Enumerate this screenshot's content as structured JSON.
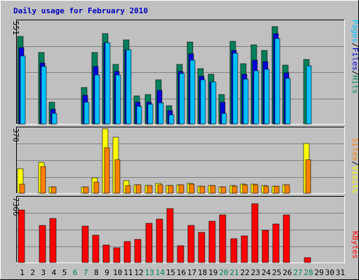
{
  "title": "Daily usage for February 2010",
  "colors": {
    "hits": "#00805c",
    "files": "#0000d8",
    "pages": "#00c0ff",
    "visits": "#ffff00",
    "sites": "#ff8000",
    "kbytes": "#ff0000",
    "title": "#0000c0",
    "weekend": "#00805c",
    "weekday": "#000000"
  },
  "side_labels": {
    "top": {
      "hits": "Hits",
      "files": "Files",
      "pages": "Pages",
      "sep": "/"
    },
    "mid": {
      "visits": "Visits",
      "sites": "Sites",
      "sep": "/"
    },
    "bottom": {
      "kbytes": "KBytes"
    }
  },
  "chart_data": [
    {
      "type": "bar",
      "panel": "hits-files-pages",
      "categories": [
        "1",
        "2",
        "3",
        "4",
        "5",
        "6",
        "7",
        "8",
        "9",
        "10",
        "11",
        "12",
        "13",
        "14",
        "15",
        "16",
        "17",
        "18",
        "19",
        "20",
        "21",
        "22",
        "23",
        "24",
        "25",
        "26",
        "27",
        "28",
        "29",
        "30",
        "31"
      ],
      "weekend_days": [
        "6",
        "7",
        "13",
        "14",
        "20",
        "21",
        "27",
        "28"
      ],
      "ymax_label": "551",
      "ylim": [
        0,
        551
      ],
      "series": [
        {
          "name": "Hits",
          "color_key": "hits",
          "values": [
            464,
            0,
            381,
            116,
            0,
            0,
            193,
            379,
            479,
            316,
            447,
            150,
            158,
            236,
            98,
            318,
            434,
            294,
            263,
            158,
            438,
            322,
            419,
            390,
            519,
            313,
            0,
            343,
            0,
            0,
            0
          ]
        },
        {
          "name": "Files",
          "color_key": "files",
          "values": [
            404,
            0,
            323,
            79,
            0,
            0,
            153,
            307,
            431,
            278,
            393,
            116,
            116,
            180,
            72,
            281,
            374,
            255,
            224,
            116,
            392,
            265,
            338,
            332,
            482,
            270,
            0,
            0,
            0,
            0,
            0
          ]
        },
        {
          "name": "Pages",
          "color_key": "pages",
          "values": [
            361,
            0,
            307,
            54,
            0,
            0,
            115,
            260,
            431,
            259,
            395,
            92,
            106,
            113,
            49,
            269,
            337,
            235,
            224,
            54,
            377,
            239,
            283,
            292,
            455,
            243,
            0,
            309,
            0,
            0,
            0
          ]
        }
      ]
    },
    {
      "type": "bar",
      "panel": "visits-sites",
      "categories": [
        "1",
        "2",
        "3",
        "4",
        "5",
        "6",
        "7",
        "8",
        "9",
        "10",
        "11",
        "12",
        "13",
        "14",
        "15",
        "16",
        "17",
        "18",
        "19",
        "20",
        "21",
        "22",
        "23",
        "24",
        "25",
        "26",
        "27",
        "28",
        "29",
        "30",
        "31"
      ],
      "ymax_label": "370",
      "ylim": [
        0,
        370
      ],
      "series": [
        {
          "name": "Visits",
          "color_key": "visits",
          "values": [
            137,
            0,
            172,
            34,
            0,
            0,
            37,
            86,
            364,
            316,
            70,
            46,
            44,
            54,
            44,
            46,
            54,
            40,
            44,
            37,
            44,
            50,
            52,
            44,
            40,
            48,
            0,
            278,
            0,
            0,
            0
          ]
        },
        {
          "name": "Sites",
          "color_key": "sites",
          "values": [
            50,
            0,
            149,
            34,
            0,
            0,
            34,
            62,
            256,
            190,
            43,
            46,
            42,
            48,
            42,
            46,
            50,
            40,
            42,
            34,
            40,
            46,
            47,
            40,
            40,
            48,
            0,
            190,
            0,
            0,
            0
          ]
        }
      ]
    },
    {
      "type": "bar",
      "panel": "kbytes",
      "categories": [
        "1",
        "2",
        "3",
        "4",
        "5",
        "6",
        "7",
        "8",
        "9",
        "10",
        "11",
        "12",
        "13",
        "14",
        "15",
        "16",
        "17",
        "18",
        "19",
        "20",
        "21",
        "22",
        "23",
        "24",
        "25",
        "26",
        "27",
        "28",
        "29",
        "30",
        "31"
      ],
      "ymax_label": "7366",
      "ylim": [
        0,
        7366
      ],
      "series": [
        {
          "name": "KBytes",
          "color_key": "kbytes",
          "values": [
            6591,
            0,
            4685,
            5561,
            0,
            0,
            4562,
            3438,
            2199,
            1883,
            2612,
            2925,
            4873,
            5446,
            6715,
            2147,
            4628,
            3766,
            5185,
            5966,
            2943,
            3370,
            7366,
            4006,
            4812,
            5997,
            0,
            637,
            0,
            0,
            0
          ]
        }
      ]
    }
  ]
}
